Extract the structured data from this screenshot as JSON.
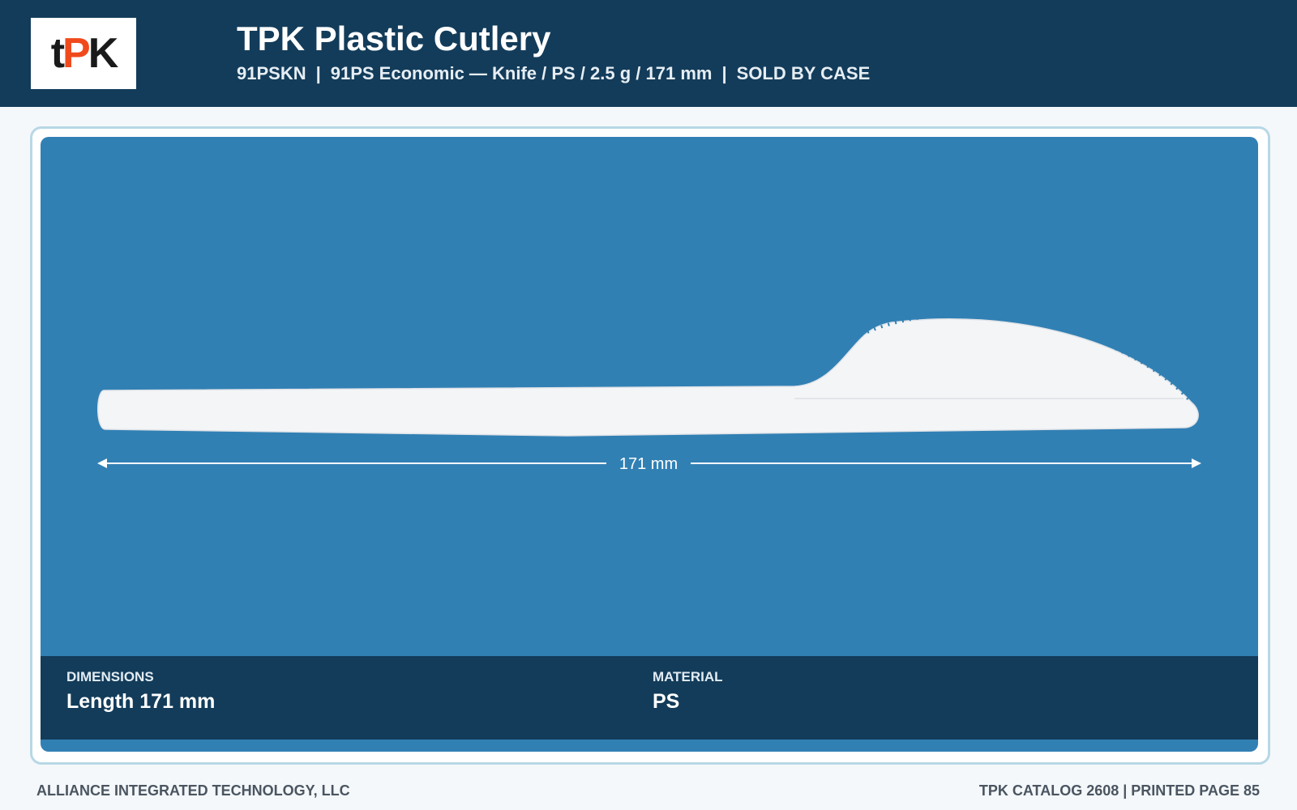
{
  "header": {
    "logo": {
      "t": "t",
      "p": "P",
      "k": "K"
    },
    "title": "TPK Plastic Cutlery",
    "subtitle": [
      "91PSKN",
      "91PS Economic — Knife / PS / 2.5 g / 171 mm",
      "SOLD BY CASE"
    ],
    "separator": "|"
  },
  "product": {
    "dimension_label": "171 mm"
  },
  "specs": [
    {
      "label": "DIMENSIONS",
      "value": "Length 171 mm"
    },
    {
      "label": "MATERIAL",
      "value": "PS"
    }
  ],
  "footer": {
    "left": "ALLIANCE INTEGRATED TECHNOLOGY, LLC",
    "right": "TPK CATALOG 2608 | PRINTED PAGE 85"
  }
}
